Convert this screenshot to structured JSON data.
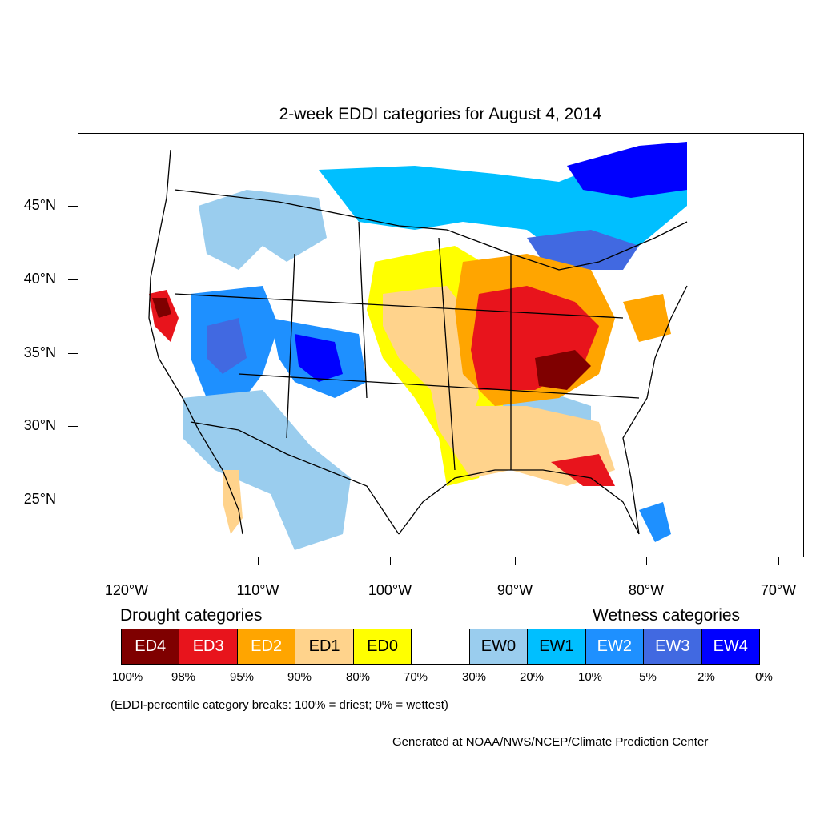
{
  "title": "2-week EDDI categories for August 4, 2014",
  "axes": {
    "lat_labels": [
      "45°N",
      "40°N",
      "35°N",
      "30°N",
      "25°N"
    ],
    "lon_labels": [
      "120°W",
      "110°W",
      "100°W",
      "90°W",
      "80°W",
      "70°W"
    ]
  },
  "legend": {
    "drought_heading": "Drought categories",
    "wetness_heading": "Wetness categories",
    "categories": [
      {
        "label": "ED4",
        "color": "#7f0000",
        "text_color": "#ffffff"
      },
      {
        "label": "ED3",
        "color": "#e8141c",
        "text_color": "#ffffff"
      },
      {
        "label": "ED2",
        "color": "#ffa500",
        "text_color": "#ffffff"
      },
      {
        "label": "ED1",
        "color": "#ffd38c",
        "text_color": "#000000"
      },
      {
        "label": "ED0",
        "color": "#ffff00",
        "text_color": "#000000"
      },
      {
        "label": "",
        "color": "#ffffff",
        "text_color": "#000000"
      },
      {
        "label": "EW0",
        "color": "#9acdee",
        "text_color": "#000000"
      },
      {
        "label": "EW1",
        "color": "#00bfff",
        "text_color": "#000000"
      },
      {
        "label": "EW2",
        "color": "#1e90ff",
        "text_color": "#ffffff"
      },
      {
        "label": "EW3",
        "color": "#4169e1",
        "text_color": "#ffffff"
      },
      {
        "label": "EW4",
        "color": "#0000ff",
        "text_color": "#ffffff"
      }
    ],
    "percent_breaks": [
      "100%",
      "98%",
      "95%",
      "90%",
      "80%",
      "70%",
      "30%",
      "20%",
      "10%",
      "5%",
      "2%",
      "0%"
    ]
  },
  "note": "(EDDI-percentile category breaks: 100% = driest; 0% = wettest)",
  "credit": "Generated at NOAA/NWS/NCEP/Climate Prediction Center"
}
